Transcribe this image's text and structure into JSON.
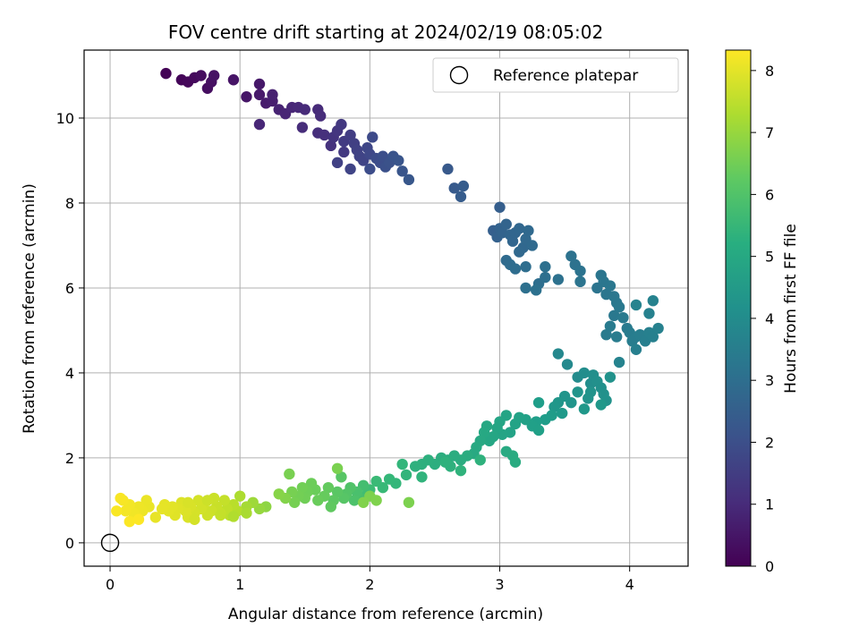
{
  "chart_data": {
    "type": "scatter",
    "title": "FOV centre drift starting at 2024/02/19 08:05:02",
    "xlabel": "Angular distance from reference (arcmin)",
    "ylabel": "Rotation from reference (arcmin)",
    "xlim": [
      -0.2,
      4.45
    ],
    "ylim": [
      -0.55,
      11.6
    ],
    "xticks": [
      0,
      1,
      2,
      3,
      4
    ],
    "yticks": [
      0,
      2,
      4,
      6,
      8,
      10
    ],
    "grid": true,
    "legend": {
      "label": "Reference platepar",
      "placement": "top-right"
    },
    "reference_point": {
      "x": 0,
      "y": 0
    },
    "colorbar": {
      "label": "Hours from first FF file",
      "min": 0,
      "max": 8.33,
      "ticks": [
        0,
        1,
        2,
        3,
        4,
        5,
        6,
        7,
        8
      ],
      "colormap": "viridis"
    },
    "points": [
      [
        0.43,
        11.05,
        0.05
      ],
      [
        0.55,
        10.9,
        0.1
      ],
      [
        0.6,
        10.85,
        0.15
      ],
      [
        0.65,
        10.95,
        0.2
      ],
      [
        0.7,
        11.0,
        0.25
      ],
      [
        0.75,
        10.7,
        0.3
      ],
      [
        0.78,
        10.85,
        0.35
      ],
      [
        0.8,
        11.0,
        0.4
      ],
      [
        0.95,
        10.9,
        0.45
      ],
      [
        1.05,
        10.5,
        0.5
      ],
      [
        1.15,
        10.8,
        0.55
      ],
      [
        1.15,
        10.55,
        0.6
      ],
      [
        1.2,
        10.35,
        0.65
      ],
      [
        1.25,
        10.4,
        0.7
      ],
      [
        1.25,
        10.55,
        0.75
      ],
      [
        1.3,
        10.2,
        0.8
      ],
      [
        1.35,
        10.1,
        0.85
      ],
      [
        1.4,
        10.25,
        0.9
      ],
      [
        1.45,
        10.25,
        0.95
      ],
      [
        1.5,
        10.2,
        1.0
      ],
      [
        1.15,
        9.85,
        0.9
      ],
      [
        1.48,
        9.78,
        1.05
      ],
      [
        1.6,
        10.2,
        1.0
      ],
      [
        1.62,
        10.05,
        1.05
      ],
      [
        1.6,
        9.65,
        1.1
      ],
      [
        1.65,
        9.6,
        1.15
      ],
      [
        1.7,
        9.35,
        1.2
      ],
      [
        1.72,
        9.55,
        1.25
      ],
      [
        1.75,
        9.7,
        1.3
      ],
      [
        1.78,
        9.85,
        1.35
      ],
      [
        1.8,
        9.2,
        1.4
      ],
      [
        1.8,
        9.45,
        1.45
      ],
      [
        1.85,
        9.6,
        1.5
      ],
      [
        1.88,
        9.4,
        1.55
      ],
      [
        1.9,
        9.25,
        1.6
      ],
      [
        1.92,
        9.1,
        1.65
      ],
      [
        1.95,
        9.0,
        1.7
      ],
      [
        1.98,
        9.3,
        1.75
      ],
      [
        2.0,
        9.15,
        1.8
      ],
      [
        2.02,
        9.55,
        1.85
      ],
      [
        2.05,
        9.05,
        1.9
      ],
      [
        2.08,
        8.95,
        1.95
      ],
      [
        2.1,
        9.1,
        2.0
      ],
      [
        2.12,
        8.85,
        2.05
      ],
      [
        2.15,
        8.95,
        2.1
      ],
      [
        2.18,
        9.1,
        2.15
      ],
      [
        2.22,
        9.0,
        2.2
      ],
      [
        2.25,
        8.75,
        2.2
      ],
      [
        2.0,
        8.8,
        1.95
      ],
      [
        1.75,
        8.95,
        1.6
      ],
      [
        1.85,
        8.8,
        1.7
      ],
      [
        2.3,
        8.55,
        2.25
      ],
      [
        2.6,
        8.8,
        2.3
      ],
      [
        2.65,
        8.35,
        2.35
      ],
      [
        2.7,
        8.15,
        2.4
      ],
      [
        2.72,
        8.4,
        2.42
      ],
      [
        2.95,
        7.35,
        2.5
      ],
      [
        2.98,
        7.2,
        2.55
      ],
      [
        3.0,
        7.4,
        2.6
      ],
      [
        3.02,
        7.3,
        2.62
      ],
      [
        3.05,
        7.5,
        2.65
      ],
      [
        3.08,
        7.25,
        2.68
      ],
      [
        3.1,
        7.1,
        2.7
      ],
      [
        3.12,
        7.3,
        2.72
      ],
      [
        3.15,
        7.4,
        2.75
      ],
      [
        3.18,
        6.95,
        2.78
      ],
      [
        3.2,
        7.15,
        2.8
      ],
      [
        3.22,
        7.35,
        2.82
      ],
      [
        3.25,
        7.0,
        2.85
      ],
      [
        3.15,
        6.85,
        2.8
      ],
      [
        3.0,
        7.9,
        2.48
      ],
      [
        3.05,
        6.65,
        2.9
      ],
      [
        3.08,
        6.55,
        2.92
      ],
      [
        3.12,
        6.45,
        2.95
      ],
      [
        3.2,
        6.5,
        2.98
      ],
      [
        3.3,
        6.1,
        3.0
      ],
      [
        3.35,
        6.25,
        3.02
      ],
      [
        3.35,
        6.5,
        3.05
      ],
      [
        3.28,
        5.95,
        3.08
      ],
      [
        3.2,
        6.0,
        3.05
      ],
      [
        3.45,
        6.2,
        3.1
      ],
      [
        3.55,
        6.75,
        3.12
      ],
      [
        3.58,
        6.55,
        3.15
      ],
      [
        3.62,
        6.4,
        3.18
      ],
      [
        3.62,
        6.15,
        3.2
      ],
      [
        3.75,
        6.0,
        3.22
      ],
      [
        3.78,
        6.3,
        3.24
      ],
      [
        3.8,
        6.15,
        3.26
      ],
      [
        3.82,
        5.85,
        3.28
      ],
      [
        3.85,
        6.05,
        3.3
      ],
      [
        3.88,
        5.8,
        3.32
      ],
      [
        3.9,
        5.65,
        3.34
      ],
      [
        3.88,
        5.35,
        3.36
      ],
      [
        3.92,
        5.55,
        3.38
      ],
      [
        3.95,
        5.3,
        3.4
      ],
      [
        3.98,
        5.05,
        3.42
      ],
      [
        3.85,
        5.1,
        3.44
      ],
      [
        3.82,
        4.9,
        3.46
      ],
      [
        3.9,
        4.85,
        3.48
      ],
      [
        4.0,
        4.95,
        3.5
      ],
      [
        4.02,
        4.75,
        3.52
      ],
      [
        4.05,
        4.85,
        3.54
      ],
      [
        4.08,
        4.9,
        3.56
      ],
      [
        4.05,
        4.55,
        3.58
      ],
      [
        4.12,
        4.75,
        3.6
      ],
      [
        4.15,
        4.95,
        3.62
      ],
      [
        4.18,
        4.85,
        3.64
      ],
      [
        4.22,
        5.05,
        3.66
      ],
      [
        4.15,
        5.4,
        3.68
      ],
      [
        4.18,
        5.7,
        3.7
      ],
      [
        4.05,
        5.6,
        3.72
      ],
      [
        3.92,
        4.25,
        3.75
      ],
      [
        3.45,
        4.45,
        3.9
      ],
      [
        3.52,
        4.2,
        3.95
      ],
      [
        3.6,
        3.9,
        4.0
      ],
      [
        3.65,
        4.0,
        4.05
      ],
      [
        3.7,
        3.75,
        4.1
      ],
      [
        3.72,
        3.95,
        4.12
      ],
      [
        3.75,
        3.8,
        4.15
      ],
      [
        3.78,
        3.65,
        4.18
      ],
      [
        3.8,
        3.5,
        4.2
      ],
      [
        3.82,
        3.35,
        4.22
      ],
      [
        3.85,
        3.9,
        4.24
      ],
      [
        3.7,
        3.55,
        4.26
      ],
      [
        3.68,
        3.4,
        4.28
      ],
      [
        3.6,
        3.55,
        4.3
      ],
      [
        3.55,
        3.3,
        4.32
      ],
      [
        3.5,
        3.45,
        4.34
      ],
      [
        3.45,
        3.3,
        4.36
      ],
      [
        3.42,
        3.2,
        4.4
      ],
      [
        3.65,
        3.15,
        4.42
      ],
      [
        3.78,
        3.25,
        4.44
      ],
      [
        3.48,
        3.05,
        4.5
      ],
      [
        3.4,
        3.0,
        4.55
      ],
      [
        3.35,
        2.9,
        4.6
      ],
      [
        3.3,
        3.3,
        4.62
      ],
      [
        3.28,
        2.85,
        4.65
      ],
      [
        3.25,
        2.75,
        4.7
      ],
      [
        3.3,
        2.65,
        4.72
      ],
      [
        3.2,
        2.9,
        4.75
      ],
      [
        3.15,
        2.95,
        4.78
      ],
      [
        3.12,
        2.8,
        4.8
      ],
      [
        3.08,
        2.6,
        4.82
      ],
      [
        3.05,
        3.0,
        4.84
      ],
      [
        3.02,
        2.55,
        4.86
      ],
      [
        3.0,
        2.85,
        4.88
      ],
      [
        2.98,
        2.7,
        4.9
      ],
      [
        2.95,
        2.5,
        4.92
      ],
      [
        2.92,
        2.4,
        4.94
      ],
      [
        2.9,
        2.75,
        4.96
      ],
      [
        2.88,
        2.6,
        4.98
      ],
      [
        2.85,
        2.4,
        5.0
      ],
      [
        2.82,
        2.25,
        5.02
      ],
      [
        2.8,
        2.1,
        5.04
      ],
      [
        3.05,
        2.15,
        5.06
      ],
      [
        3.1,
        2.05,
        5.08
      ],
      [
        3.12,
        1.9,
        5.1
      ],
      [
        2.75,
        2.05,
        5.12
      ],
      [
        2.7,
        1.95,
        5.14
      ],
      [
        2.65,
        2.05,
        5.16
      ],
      [
        2.6,
        1.95,
        5.18
      ],
      [
        2.55,
        2.0,
        5.2
      ],
      [
        2.5,
        1.85,
        5.22
      ],
      [
        2.45,
        1.95,
        5.24
      ],
      [
        2.4,
        1.85,
        5.26
      ],
      [
        2.35,
        1.8,
        5.28
      ],
      [
        2.62,
        1.8,
        5.3
      ],
      [
        2.85,
        1.95,
        5.32
      ],
      [
        2.58,
        1.9,
        5.34
      ],
      [
        2.7,
        1.7,
        5.36
      ],
      [
        2.4,
        1.55,
        5.4
      ],
      [
        2.28,
        1.6,
        5.45
      ],
      [
        2.25,
        1.85,
        5.48
      ],
      [
        2.2,
        1.4,
        5.5
      ],
      [
        2.15,
        1.5,
        5.55
      ],
      [
        2.1,
        1.3,
        5.6
      ],
      [
        2.05,
        1.45,
        5.65
      ],
      [
        2.0,
        1.25,
        5.7
      ],
      [
        1.98,
        1.15,
        5.75
      ],
      [
        1.95,
        1.35,
        5.8
      ],
      [
        1.92,
        1.05,
        5.85
      ],
      [
        1.9,
        1.2,
        5.9
      ],
      [
        1.88,
        1.0,
        5.95
      ],
      [
        1.85,
        1.3,
        6.0
      ],
      [
        1.82,
        1.15,
        6.05
      ],
      [
        1.8,
        1.05,
        6.1
      ],
      [
        1.78,
        1.55,
        6.12
      ],
      [
        1.75,
        1.2,
        6.15
      ],
      [
        1.72,
        1.0,
        6.2
      ],
      [
        1.7,
        0.85,
        6.25
      ],
      [
        1.68,
        1.3,
        6.3
      ],
      [
        1.65,
        1.1,
        6.35
      ],
      [
        1.6,
        1.0,
        6.4
      ],
      [
        1.58,
        1.25,
        6.42
      ],
      [
        1.55,
        1.4,
        6.45
      ],
      [
        1.52,
        1.2,
        6.48
      ],
      [
        1.5,
        1.05,
        6.5
      ],
      [
        1.48,
        1.3,
        6.52
      ],
      [
        1.45,
        1.1,
        6.55
      ],
      [
        1.42,
        0.95,
        6.58
      ],
      [
        1.4,
        1.2,
        6.6
      ],
      [
        1.38,
        1.62,
        6.62
      ],
      [
        1.75,
        1.75,
        6.64
      ],
      [
        2.3,
        0.95,
        6.66
      ],
      [
        2.0,
        1.1,
        6.68
      ],
      [
        2.05,
        1.0,
        6.7
      ],
      [
        1.95,
        0.95,
        6.72
      ],
      [
        1.35,
        1.05,
        6.75
      ],
      [
        1.3,
        1.15,
        6.8
      ],
      [
        1.2,
        0.85,
        6.9
      ],
      [
        1.15,
        0.8,
        7.0
      ],
      [
        1.1,
        0.95,
        7.1
      ],
      [
        1.05,
        0.85,
        7.2
      ],
      [
        1.0,
        1.1,
        7.3
      ],
      [
        0.98,
        0.75,
        7.4
      ],
      [
        0.95,
        0.9,
        7.45
      ],
      [
        0.92,
        0.65,
        7.5
      ],
      [
        0.9,
        0.8,
        7.55
      ],
      [
        0.88,
        1.0,
        7.6
      ],
      [
        0.85,
        0.7,
        7.62
      ],
      [
        0.82,
        0.85,
        7.65
      ],
      [
        0.8,
        1.05,
        7.68
      ],
      [
        0.78,
        0.75,
        7.7
      ],
      [
        0.75,
        0.65,
        7.72
      ],
      [
        0.72,
        0.9,
        7.75
      ],
      [
        0.7,
        0.8,
        7.78
      ],
      [
        0.68,
        1.0,
        7.8
      ],
      [
        0.65,
        0.7,
        7.82
      ],
      [
        0.62,
        0.85,
        7.85
      ],
      [
        0.6,
        0.6,
        7.88
      ],
      [
        0.58,
        0.75,
        7.9
      ],
      [
        0.55,
        0.95,
        7.92
      ],
      [
        0.52,
        0.8,
        7.94
      ],
      [
        0.5,
        0.65,
        7.96
      ],
      [
        0.48,
        0.85,
        7.98
      ],
      [
        0.45,
        0.75,
        8.0
      ],
      [
        0.42,
        0.9,
        8.02
      ],
      [
        0.4,
        0.8,
        8.04
      ],
      [
        0.35,
        0.6,
        8.06
      ],
      [
        0.3,
        0.85,
        8.08
      ],
      [
        0.28,
        1.0,
        8.1
      ],
      [
        0.25,
        0.75,
        8.12
      ],
      [
        0.22,
        0.85,
        8.14
      ],
      [
        0.2,
        0.65,
        8.16
      ],
      [
        0.18,
        0.7,
        8.18
      ],
      [
        0.15,
        0.9,
        8.2
      ],
      [
        0.12,
        0.75,
        8.22
      ],
      [
        0.1,
        1.0,
        8.24
      ],
      [
        0.08,
        1.05,
        8.26
      ],
      [
        0.05,
        0.75,
        8.28
      ],
      [
        0.15,
        0.5,
        8.3
      ],
      [
        0.22,
        0.55,
        8.32
      ],
      [
        0.6,
        0.95,
        7.85
      ],
      [
        0.75,
        1.0,
        7.7
      ],
      [
        0.85,
        0.65,
        7.6
      ],
      [
        1.05,
        0.7,
        7.25
      ],
      [
        0.95,
        0.62,
        7.35
      ],
      [
        0.65,
        0.55,
        7.8
      ]
    ]
  }
}
